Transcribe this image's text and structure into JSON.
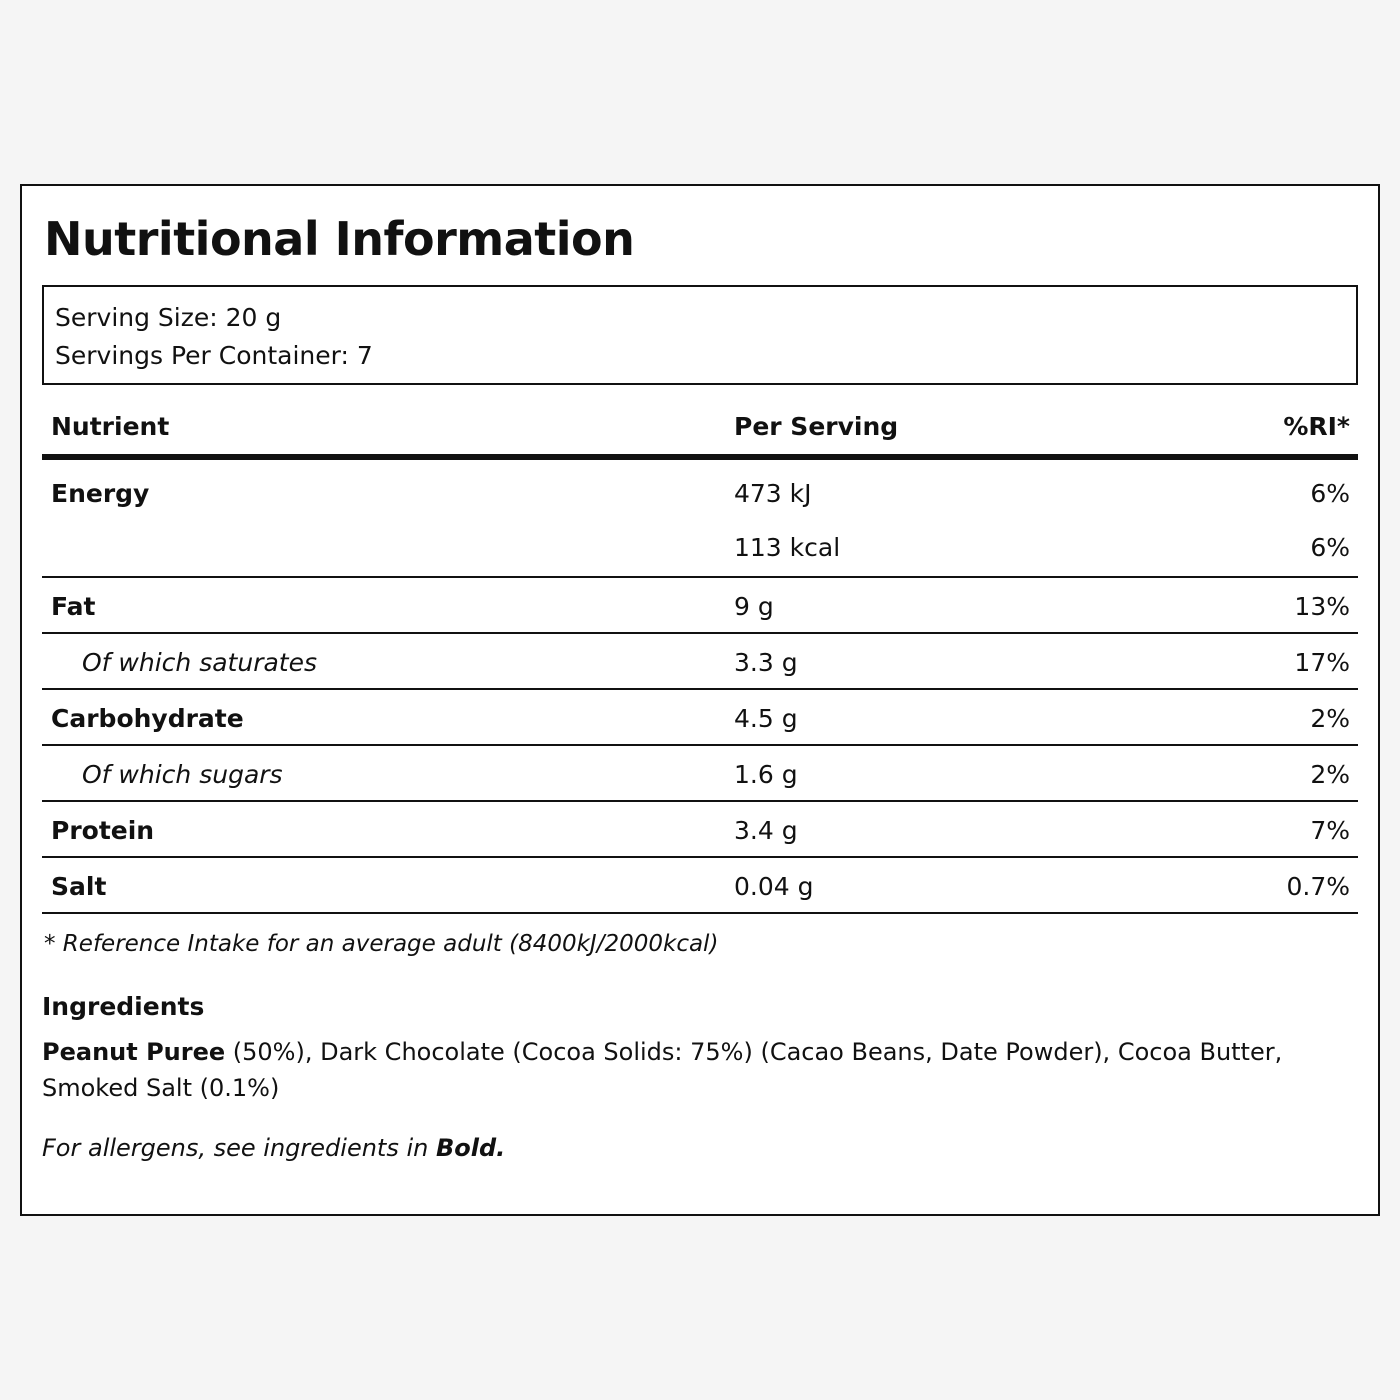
{
  "title": "Nutritional Information",
  "serving": {
    "size": "Serving Size: 20 g",
    "per_container": "Servings Per Container: 7"
  },
  "table": {
    "headers": {
      "nutrient": "Nutrient",
      "per_serving": "Per Serving",
      "ri": "%RI*"
    },
    "energy": {
      "name": "Energy",
      "kj": "473 kJ",
      "kj_ri": "6%",
      "kcal": "113 kcal",
      "kcal_ri": "6%"
    },
    "rows": [
      {
        "name": "Fat",
        "value": "9 g",
        "ri": "13%"
      },
      {
        "name": "Of which saturates",
        "value": "3.3 g",
        "ri": "17%"
      },
      {
        "name": "Carbohydrate",
        "value": "4.5 g",
        "ri": "2%"
      },
      {
        "name": "Of which sugars",
        "value": "1.6 g",
        "ri": "2%"
      },
      {
        "name": "Protein",
        "value": "3.4 g",
        "ri": "7%"
      },
      {
        "name": "Salt",
        "value": "0.04 g",
        "ri": "0.7%"
      }
    ]
  },
  "footnote": "* Reference Intake for an average adult (8400kJ/2000kcal)",
  "ingredients": {
    "title": "Ingredients",
    "bold_part": "Peanut Puree",
    "rest": " (50%), Dark Chocolate (Cocoa Solids: 75%) (Cacao Beans, Date Powder), Cocoa Butter, Smoked Salt (0.1%)"
  },
  "allergen_note": {
    "text": "For allergens, see ingredients in ",
    "bold": "Bold."
  }
}
